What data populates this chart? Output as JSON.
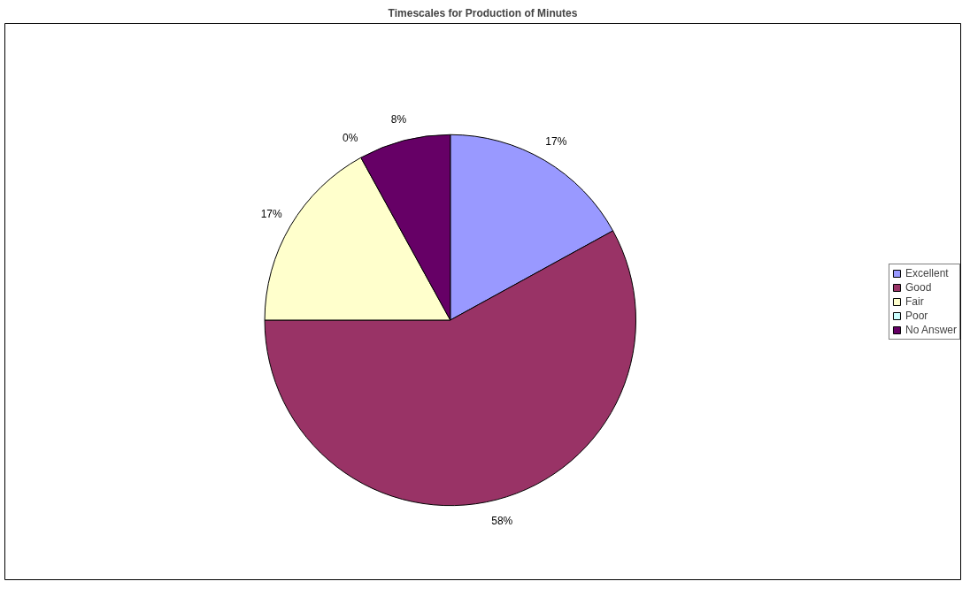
{
  "chart_data": {
    "type": "pie",
    "title": "Timescales for Production of Minutes",
    "categories": [
      "Excellent",
      "Good",
      "Fair",
      "Poor",
      "No Answer"
    ],
    "values": [
      17,
      58,
      17,
      0,
      8
    ],
    "colors": [
      "#9999ff",
      "#993366",
      "#ffffcc",
      "#ccffff",
      "#660066"
    ],
    "value_labels": [
      "17%",
      "58%",
      "17%",
      "0%",
      "8%"
    ],
    "legend": "right"
  }
}
